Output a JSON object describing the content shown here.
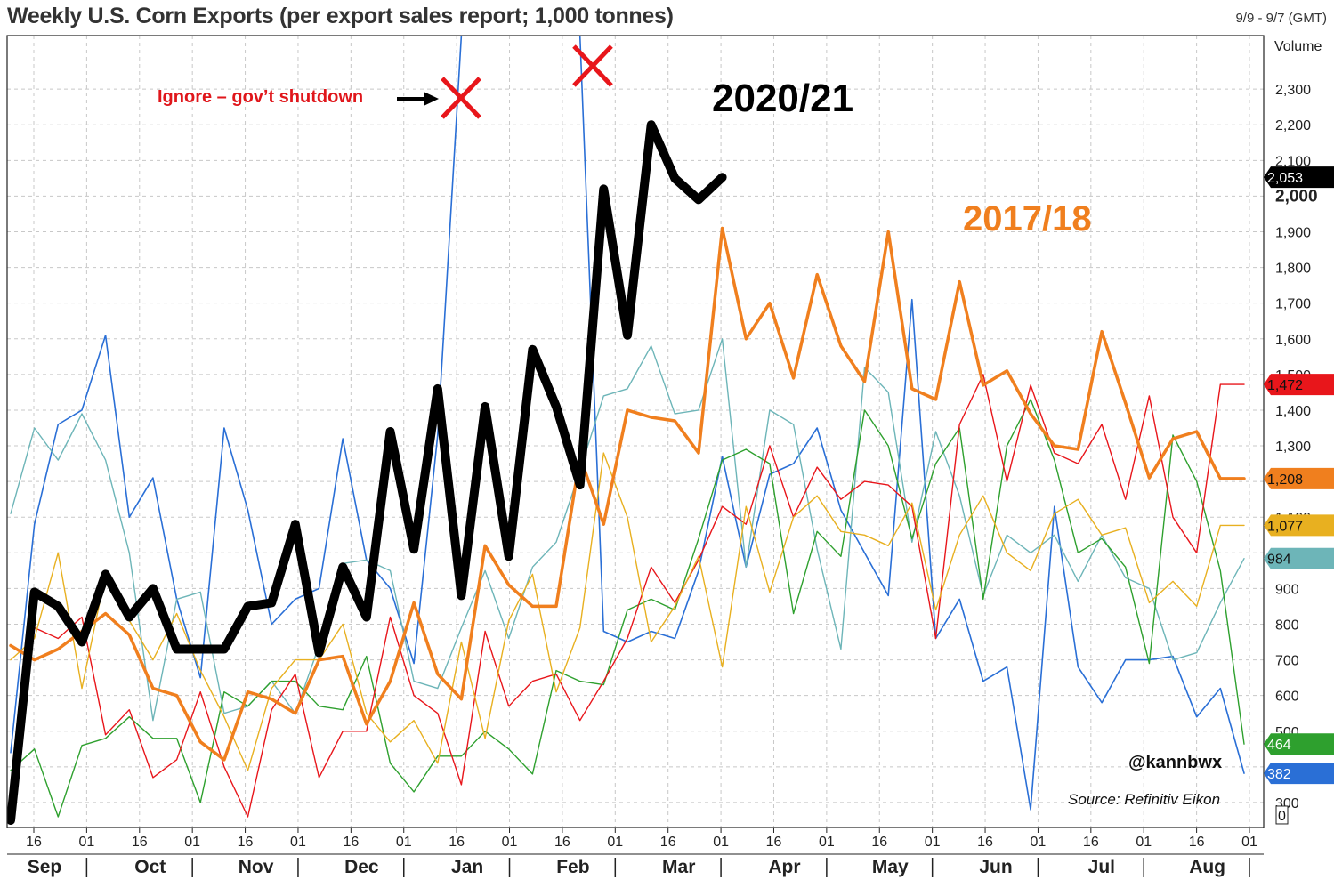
{
  "header": {
    "title": "Weekly U.S. Corn Exports (per export sales report; 1,000 tonnes)",
    "date_range": "9/9 - 9/7 (GMT)",
    "volume_label": "Volume"
  },
  "annotations": {
    "label_2020": "2020/21",
    "label_2017": "2017/18",
    "shutdown_note": "Ignore – gov’t shutdown",
    "handle": "@kannbwx",
    "source": "Source: Refinitiv Eikon"
  },
  "colors": {
    "2020_21": "#000000",
    "2017_18": "#f07f1e",
    "red_series": "#e8161b",
    "gold_series": "#e8b020",
    "teal_series": "#6db5b8",
    "green_series": "#2ea02e",
    "blue_series": "#2a6fd6",
    "marker": "#e8161b"
  },
  "chart_data": {
    "type": "line",
    "title": "Weekly U.S. Corn Exports (per export sales report; 1,000 tonnes)",
    "ylim": [
      230,
      2450
    ],
    "yticks": [
      300,
      400,
      500,
      600,
      700,
      800,
      900,
      1000,
      1100,
      1200,
      1300,
      1400,
      1500,
      1600,
      1700,
      1800,
      1900,
      2000,
      2100,
      2200,
      2300
    ],
    "ytick_labels": [
      "300",
      "400",
      "500",
      "600",
      "700",
      "800",
      "900",
      "1,000",
      "1,100",
      "1,200",
      "1,300",
      "1,400",
      "1,500",
      "1,600",
      "1,700",
      "1,800",
      "1,900",
      "2,000",
      "2,100",
      "2,200",
      "2,300"
    ],
    "x_weeks": 52,
    "x_tick_labels": [
      "16",
      "01",
      "16",
      "01",
      "16",
      "01",
      "16",
      "01",
      "16",
      "01",
      "16",
      "01",
      "16",
      "01",
      "16",
      "01",
      "16",
      "01",
      "16",
      "01",
      "16",
      "01",
      "16",
      "01"
    ],
    "month_labels": [
      "Sep",
      "Oct",
      "Nov",
      "Dec",
      "Jan",
      "Feb",
      "Mar",
      "Apr",
      "May",
      "Jun",
      "Jul",
      "Aug"
    ],
    "grid": true,
    "series": [
      {
        "key": "blue_series",
        "width": 1.6,
        "last_label": "382",
        "values": [
          440,
          1080,
          1360,
          1400,
          1610,
          1100,
          1210,
          870,
          650,
          1350,
          1120,
          800,
          870,
          900,
          1320,
          980,
          900,
          690,
          1330,
          2450,
          2450,
          2450,
          2450,
          2450,
          2450,
          780,
          750,
          780,
          760,
          950,
          1270,
          960,
          1220,
          1250,
          1350,
          1120,
          1000,
          880,
          1710,
          760,
          870,
          640,
          680,
          280,
          1130,
          680,
          580,
          700,
          700,
          710,
          540,
          620,
          382
        ]
      },
      {
        "key": "teal_series",
        "width": 1.4,
        "last_label": "984",
        "values": [
          1110,
          1350,
          1260,
          1390,
          1260,
          1000,
          530,
          870,
          890,
          550,
          570,
          640,
          550,
          740,
          970,
          980,
          950,
          640,
          620,
          790,
          950,
          760,
          960,
          1030,
          1230,
          1440,
          1460,
          1580,
          1390,
          1400,
          1600,
          960,
          1400,
          1360,
          1010,
          730,
          1520,
          1450,
          1030,
          1340,
          1160,
          880,
          1050,
          1000,
          1050,
          920,
          1050,
          930,
          900,
          700,
          720,
          860,
          984
        ]
      },
      {
        "key": "green_series",
        "width": 1.4,
        "last_label": "464",
        "values": [
          390,
          450,
          260,
          460,
          480,
          540,
          480,
          480,
          300,
          610,
          570,
          640,
          640,
          570,
          560,
          710,
          410,
          330,
          430,
          430,
          500,
          450,
          380,
          670,
          640,
          630,
          840,
          870,
          840,
          1040,
          1260,
          1290,
          1250,
          830,
          1060,
          990,
          1400,
          1300,
          1040,
          1250,
          1350,
          870,
          1300,
          1430,
          1260,
          1000,
          1040,
          960,
          690,
          1330,
          1200,
          950,
          464
        ]
      },
      {
        "key": "red_series",
        "width": 1.4,
        "last_label": "1,472",
        "values": [
          240,
          790,
          760,
          820,
          490,
          560,
          370,
          420,
          610,
          400,
          260,
          560,
          660,
          370,
          500,
          500,
          820,
          600,
          550,
          350,
          780,
          570,
          640,
          660,
          530,
          640,
          760,
          960,
          860,
          980,
          1130,
          1080,
          1300,
          1100,
          1240,
          1150,
          1200,
          1190,
          1130,
          760,
          1360,
          1500,
          1200,
          1470,
          1280,
          1250,
          1360,
          1150,
          1440,
          1100,
          1000,
          1472,
          1472
        ]
      },
      {
        "key": "gold_series",
        "width": 1.4,
        "last_label": "1,077",
        "values": [
          700,
          760,
          1000,
          620,
          940,
          810,
          700,
          830,
          670,
          540,
          390,
          620,
          700,
          700,
          800,
          550,
          470,
          530,
          410,
          750,
          480,
          810,
          940,
          610,
          790,
          1280,
          1100,
          750,
          850,
          990,
          680,
          1130,
          890,
          1100,
          1160,
          1060,
          1050,
          1020,
          1140,
          840,
          1050,
          1160,
          1000,
          950,
          1110,
          1150,
          1050,
          1070,
          860,
          920,
          850,
          1077,
          1077
        ]
      },
      {
        "key": "2017_18",
        "width": 3.5,
        "last_label": "1,208",
        "values": [
          740,
          700,
          730,
          780,
          830,
          770,
          620,
          600,
          470,
          420,
          610,
          590,
          550,
          700,
          710,
          520,
          640,
          860,
          660,
          590,
          1020,
          910,
          850,
          850,
          1270,
          1080,
          1400,
          1380,
          1370,
          1280,
          1910,
          1600,
          1700,
          1490,
          1780,
          1580,
          1480,
          1900,
          1460,
          1430,
          1760,
          1470,
          1510,
          1390,
          1300,
          1290,
          1620,
          1420,
          1210,
          1320,
          1340,
          1208,
          1208
        ]
      },
      {
        "key": "2020_21",
        "width": 10,
        "last_label": "2,053",
        "values": [
          250,
          890,
          850,
          750,
          940,
          820,
          900,
          730,
          730,
          730,
          850,
          860,
          1080,
          720,
          960,
          820,
          1340,
          1010,
          1460,
          880,
          1410,
          990,
          1570,
          1410,
          1190,
          2020,
          1610,
          2200,
          2050,
          1990,
          2053
        ]
      }
    ],
    "badges": [
      {
        "label": "2,053",
        "value": 2053,
        "key": "2020_21",
        "text_color": "#ffffff"
      },
      {
        "label": "1,472",
        "value": 1472,
        "key": "red_series",
        "text_color": "#111111"
      },
      {
        "label": "1,208",
        "value": 1208,
        "key": "2017_18",
        "text_color": "#111111"
      },
      {
        "label": "1,077",
        "value": 1077,
        "key": "gold_series",
        "text_color": "#111111"
      },
      {
        "label": "984",
        "value": 984,
        "key": "teal_series",
        "text_color": "#111111"
      },
      {
        "label": "464",
        "value": 464,
        "key": "green_series",
        "text_color": "#ffffff"
      },
      {
        "label": "382",
        "value": 382,
        "key": "blue_series",
        "text_color": "#ffffff"
      },
      {
        "label": "0",
        "value": 265,
        "key": "none",
        "text_color": "#111111"
      }
    ]
  }
}
